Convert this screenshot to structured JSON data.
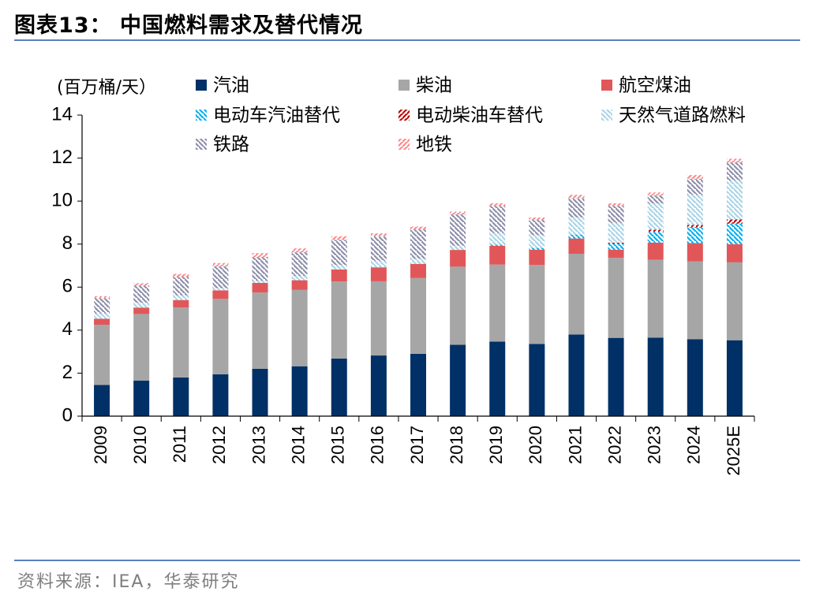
{
  "title": "图表13： 中国燃料需求及替代情况",
  "source": "资料来源：IEA，华泰研究",
  "colors": {
    "gasoline": "#003066",
    "diesel": "#a6a6a6",
    "jet": "#e15759",
    "ev_gasoline": "#00b0f0",
    "ev_diesel": "#c00000",
    "natural_gas": "#a9d4e6",
    "rail": "#8e8faa",
    "metro": "#ff8a8a",
    "rule": "#5b7fbf"
  },
  "chart_data": {
    "type": "bar",
    "stacked": true,
    "ylabel": "(百万桶/天）",
    "ylim": [
      0,
      14
    ],
    "yticks": [
      0,
      2,
      4,
      6,
      8,
      10,
      12,
      14
    ],
    "grid": false,
    "legend_position": "top",
    "categories": [
      "2009",
      "2010",
      "2011",
      "2012",
      "2013",
      "2014",
      "2015",
      "2016",
      "2017",
      "2018",
      "2019",
      "2020",
      "2021",
      "2022",
      "2023",
      "2024",
      "2025E"
    ],
    "series": [
      {
        "key": "gasoline",
        "name": "汽油",
        "pattern": "solid",
        "values": [
          1.45,
          1.65,
          1.8,
          1.95,
          2.2,
          2.32,
          2.68,
          2.82,
          2.9,
          3.32,
          3.47,
          3.36,
          3.8,
          3.64,
          3.65,
          3.58,
          3.53
        ]
      },
      {
        "key": "diesel",
        "name": "柴油",
        "pattern": "solid",
        "values": [
          2.8,
          3.1,
          3.25,
          3.5,
          3.55,
          3.55,
          3.58,
          3.45,
          3.52,
          3.63,
          3.58,
          3.67,
          3.75,
          3.72,
          3.62,
          3.62,
          3.62
        ]
      },
      {
        "key": "jet",
        "name": "航空煤油",
        "pattern": "solid",
        "values": [
          0.28,
          0.3,
          0.35,
          0.4,
          0.45,
          0.45,
          0.56,
          0.65,
          0.66,
          0.78,
          0.87,
          0.71,
          0.71,
          0.38,
          0.8,
          0.85,
          0.85
        ]
      },
      {
        "key": "ev_gasoline",
        "name": "电动车汽油替代",
        "pattern": "hatch-back",
        "values": [
          0,
          0,
          0,
          0,
          0,
          0,
          0,
          0,
          0,
          0,
          0.05,
          0.08,
          0.18,
          0.28,
          0.5,
          0.72,
          0.95
        ]
      },
      {
        "key": "ev_diesel",
        "name": "电动柴油车替代",
        "pattern": "hatch-fwd",
        "values": [
          0,
          0,
          0,
          0,
          0,
          0,
          0,
          0,
          0,
          0,
          0,
          0,
          0,
          0.05,
          0.1,
          0.12,
          0.2
        ]
      },
      {
        "key": "natural_gas",
        "name": "天然气道路燃料",
        "pattern": "hatch-back",
        "values": [
          0.25,
          0.22,
          0.22,
          0.1,
          0.1,
          0.2,
          0.2,
          0.3,
          0.25,
          0.2,
          0.55,
          0.6,
          0.8,
          0.9,
          1.2,
          1.4,
          1.8
        ]
      },
      {
        "key": "rail",
        "name": "铁路",
        "pattern": "hatch-back",
        "values": [
          0.7,
          0.8,
          0.85,
          1.02,
          1.1,
          1.1,
          1.18,
          1.15,
          1.35,
          1.45,
          1.25,
          0.7,
          0.9,
          0.8,
          0.4,
          0.75,
          0.85
        ]
      },
      {
        "key": "metro",
        "name": "地铁",
        "pattern": "hatch-fwd",
        "values": [
          0.1,
          0.12,
          0.15,
          0.15,
          0.18,
          0.18,
          0.17,
          0.13,
          0.14,
          0.13,
          0.13,
          0.12,
          0.15,
          0.13,
          0.13,
          0.17,
          0.17
        ]
      }
    ]
  }
}
